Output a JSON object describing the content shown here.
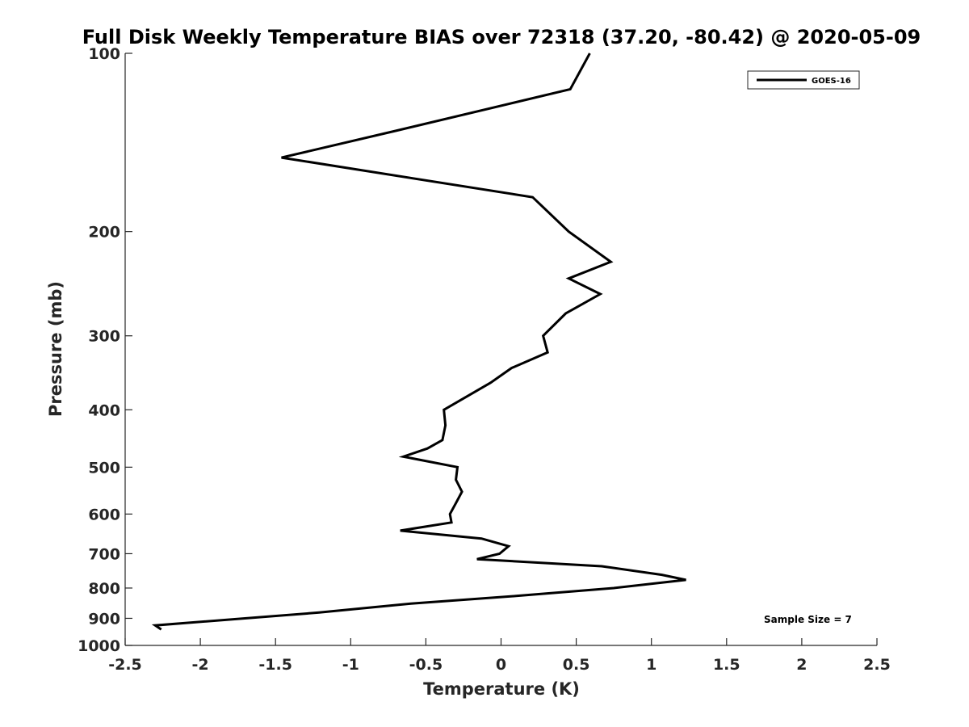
{
  "chart_data": {
    "type": "line",
    "title": "Full Disk Weekly Temperature BIAS over 72318 (37.20, -80.42) @ 2020-05-09",
    "xlabel": "Temperature (K)",
    "ylabel": "Pressure (mb)",
    "xlim": [
      -2.5,
      2.5
    ],
    "ylim": [
      100,
      1000
    ],
    "y_scale": "log",
    "y_reversed": true,
    "x_ticks": [
      "-2.5",
      "-2",
      "-1.5",
      "-1",
      "-0.5",
      "0",
      "0.5",
      "1",
      "1.5",
      "2",
      "2.5"
    ],
    "x_tick_values": [
      -2.5,
      -2,
      -1.5,
      -1,
      -0.5,
      0,
      0.5,
      1,
      1.5,
      2,
      2.5
    ],
    "y_ticks": [
      "100",
      "200",
      "300",
      "400",
      "500",
      "600",
      "700",
      "800",
      "900",
      "1000"
    ],
    "y_tick_values": [
      100,
      200,
      300,
      400,
      500,
      600,
      700,
      800,
      900,
      1000
    ],
    "grid": false,
    "legend_position": "top-right",
    "annotation": "Sample Size = 7",
    "series": [
      {
        "name": "GOES-16",
        "color": "#000000",
        "points": [
          {
            "x": 0.59,
            "y": 100
          },
          {
            "x": 0.46,
            "y": 115
          },
          {
            "x": -0.69,
            "y": 135
          },
          {
            "x": -1.46,
            "y": 150
          },
          {
            "x": 0.21,
            "y": 175
          },
          {
            "x": 0.45,
            "y": 200
          },
          {
            "x": 0.73,
            "y": 225
          },
          {
            "x": 0.45,
            "y": 240
          },
          {
            "x": 0.66,
            "y": 255
          },
          {
            "x": 0.43,
            "y": 275
          },
          {
            "x": 0.28,
            "y": 300
          },
          {
            "x": 0.31,
            "y": 320
          },
          {
            "x": 0.07,
            "y": 340
          },
          {
            "x": -0.07,
            "y": 360
          },
          {
            "x": -0.38,
            "y": 400
          },
          {
            "x": -0.37,
            "y": 425
          },
          {
            "x": -0.39,
            "y": 450
          },
          {
            "x": -0.49,
            "y": 465
          },
          {
            "x": -0.65,
            "y": 480
          },
          {
            "x": -0.29,
            "y": 500
          },
          {
            "x": -0.3,
            "y": 525
          },
          {
            "x": -0.26,
            "y": 550
          },
          {
            "x": -0.3,
            "y": 575
          },
          {
            "x": -0.34,
            "y": 600
          },
          {
            "x": -0.33,
            "y": 620
          },
          {
            "x": -0.67,
            "y": 640
          },
          {
            "x": -0.13,
            "y": 660
          },
          {
            "x": 0.05,
            "y": 680
          },
          {
            "x": -0.01,
            "y": 700
          },
          {
            "x": -0.16,
            "y": 715
          },
          {
            "x": 0.67,
            "y": 735
          },
          {
            "x": 1.07,
            "y": 760
          },
          {
            "x": 1.23,
            "y": 775
          },
          {
            "x": 0.75,
            "y": 800
          },
          {
            "x": 0.1,
            "y": 825
          },
          {
            "x": -0.6,
            "y": 850
          },
          {
            "x": -0.85,
            "y": 862
          },
          {
            "x": -1.21,
            "y": 880
          },
          {
            "x": -2.3,
            "y": 925
          },
          {
            "x": -2.26,
            "y": 940
          }
        ]
      }
    ]
  }
}
